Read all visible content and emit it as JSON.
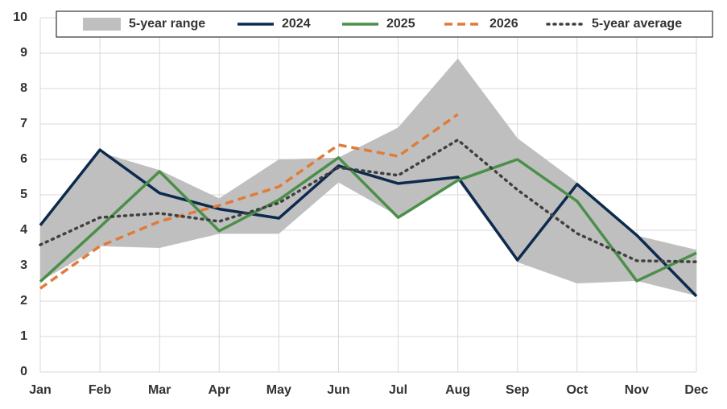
{
  "chart_data": {
    "type": "line",
    "categories": [
      "Jan",
      "Feb",
      "Mar",
      "Apr",
      "May",
      "Jun",
      "Jul",
      "Aug",
      "Sep",
      "Oct",
      "Nov",
      "Dec"
    ],
    "ylim": [
      0,
      10
    ],
    "yticks": [
      0,
      1,
      2,
      3,
      4,
      5,
      6,
      7,
      8,
      9,
      10
    ],
    "grid": true,
    "legend": "top",
    "series": [
      {
        "name": "5-year range",
        "type": "range",
        "color": "#bfbfbf",
        "lower": [
          2.55,
          3.55,
          3.5,
          3.9,
          3.9,
          5.35,
          4.4,
          5.4,
          3.1,
          2.5,
          2.57,
          2.15
        ],
        "upper": [
          4.14,
          6.2,
          5.7,
          4.9,
          6.0,
          6.05,
          6.9,
          8.85,
          6.6,
          5.35,
          3.85,
          3.45
        ]
      },
      {
        "name": "2024",
        "color": "#0c2a4e",
        "style": "solid",
        "values": [
          4.14,
          6.27,
          5.05,
          4.6,
          4.34,
          5.82,
          5.32,
          5.5,
          3.16,
          5.3,
          3.86,
          2.14
        ]
      },
      {
        "name": "2025",
        "color": "#4a8f4a",
        "style": "solid",
        "values": [
          2.55,
          4.09,
          5.66,
          3.98,
          4.86,
          6.05,
          4.36,
          5.41,
          6.0,
          4.82,
          2.57,
          3.36
        ]
      },
      {
        "name": "2026",
        "color": "#e07b39",
        "style": "dashed",
        "values": [
          2.36,
          3.55,
          4.25,
          4.7,
          5.23,
          6.41,
          6.09,
          7.27,
          null,
          null,
          null,
          null
        ]
      },
      {
        "name": "5-year average",
        "color": "#404040",
        "style": "dotted",
        "values": [
          3.59,
          4.36,
          4.48,
          4.25,
          4.77,
          5.77,
          5.55,
          6.55,
          5.14,
          3.91,
          3.14,
          3.11
        ]
      }
    ]
  }
}
